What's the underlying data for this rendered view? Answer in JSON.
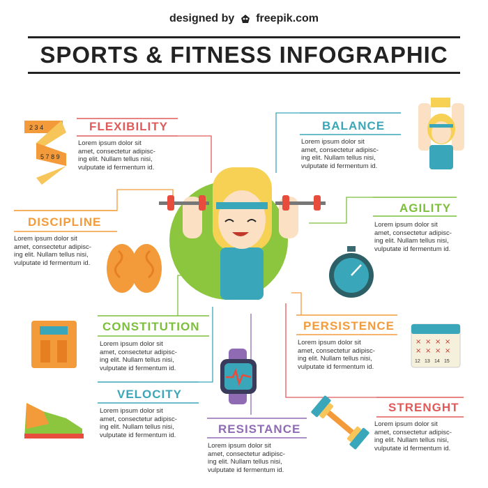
{
  "credit": {
    "designed_by": "designed by",
    "brand": "freepik.com"
  },
  "title": "SPORTS & FITNESS INFOGRAPHIC",
  "lorem": "Lorem ipsum dolor sit\namet, consectetur adipisc-\ning elit. Nullam tellus nisi,\nvulputate id fermentum id.",
  "sections": {
    "flexibility": {
      "heading": "FLEXIBILITY",
      "color": "#e05a5a"
    },
    "balance": {
      "heading": "BALANCE",
      "color": "#3aa6b9"
    },
    "agility": {
      "heading": "AGILITY",
      "color": "#7bbf3a"
    },
    "discipline": {
      "heading": "DISCIPLINE",
      "color": "#f39b3b"
    },
    "constitution": {
      "heading": "CONSTITUTION",
      "color": "#7bbf3a"
    },
    "persistence": {
      "heading": "PERSISTENCE",
      "color": "#f39b3b"
    },
    "velocity": {
      "heading": "VELOCITY",
      "color": "#3aa6b9"
    },
    "strenght": {
      "heading": "STRENGHT",
      "color": "#e05a5a"
    },
    "resistance": {
      "heading": "RESISTANCE",
      "color": "#8e6bb3"
    }
  },
  "tape_numbers": [
    "2",
    "3",
    "4",
    "5",
    "7",
    "8",
    "9"
  ],
  "calendar_numbers": [
    "12",
    "13",
    "14",
    "15"
  ],
  "icons": [
    "measuring-tape-icon",
    "brain-icon",
    "scale-icon",
    "sneaker-icon",
    "smartwatch-icon",
    "dumbbell-icon",
    "calendar-icon",
    "stopwatch-icon",
    "balancing-woman-icon",
    "athlete-woman-lifting-icon"
  ]
}
